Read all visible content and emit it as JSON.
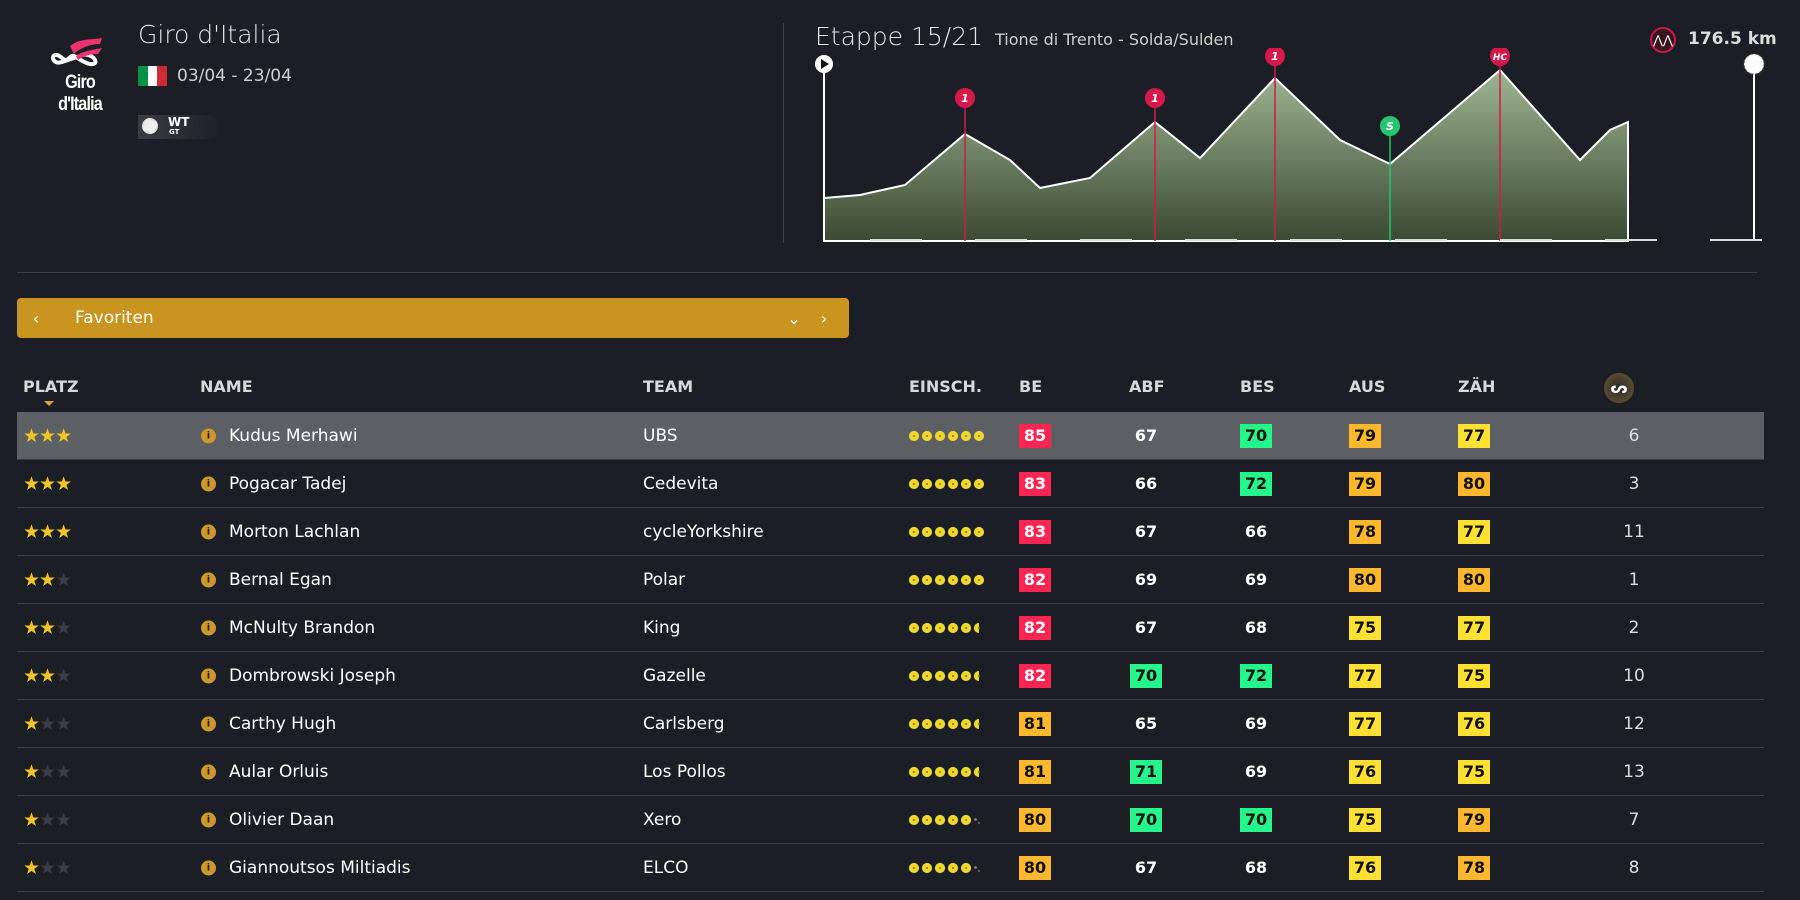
{
  "race": {
    "name": "Giro d'Italia",
    "logo_text": "Giro d'Italia",
    "dates": "03/04 - 23/04",
    "badge": "WT",
    "badge_sub": "GT",
    "flag_colors": [
      "#009246",
      "#ffffff",
      "#ce2b37"
    ]
  },
  "stage": {
    "title": "Etappe 15/21",
    "route": "Tione di Trento - Solda/Sulden",
    "distance": "176.5 km",
    "climbs": [
      {
        "label": "1",
        "type": "climb"
      },
      {
        "label": "1",
        "type": "climb"
      },
      {
        "label": "1",
        "type": "climb"
      },
      {
        "label": "S",
        "type": "sprint"
      },
      {
        "label": "HC",
        "type": "climb"
      }
    ]
  },
  "filter": {
    "label": "Favoriten"
  },
  "columns": {
    "platz": "PLATZ",
    "name": "NAME",
    "team": "TEAM",
    "form": "EINSCH.",
    "be": "BE",
    "abf": "ABF",
    "bes": "BES",
    "aus": "AUS",
    "zah": "ZÄH"
  },
  "colors": {
    "accent": "#c9941f",
    "red": "#ff2552",
    "orange": "#ffb82e",
    "yellow": "#ffe033",
    "green": "#26f58b"
  },
  "riders": [
    {
      "stars": 3,
      "name": "Kudus Merhawi",
      "team": "UBS",
      "form": 6,
      "stats": [
        [
          85,
          "red"
        ],
        [
          67,
          "none"
        ],
        [
          70,
          "grn"
        ],
        [
          79,
          "org"
        ],
        [
          77,
          "yel"
        ]
      ],
      "rank": "6",
      "selected": true
    },
    {
      "stars": 3,
      "name": "Pogacar Tadej",
      "team": "Cedevita",
      "form": 6,
      "stats": [
        [
          83,
          "red"
        ],
        [
          66,
          "none"
        ],
        [
          72,
          "grn"
        ],
        [
          79,
          "org"
        ],
        [
          80,
          "org"
        ]
      ],
      "rank": "3"
    },
    {
      "stars": 3,
      "name": "Morton Lachlan",
      "team": "cycleYorkshire",
      "form": 6,
      "stats": [
        [
          83,
          "red"
        ],
        [
          67,
          "none"
        ],
        [
          66,
          "none"
        ],
        [
          78,
          "org"
        ],
        [
          77,
          "yel"
        ]
      ],
      "rank": "11"
    },
    {
      "stars": 2,
      "name": "Bernal Egan",
      "team": "Polar",
      "form": 6,
      "stats": [
        [
          82,
          "red"
        ],
        [
          69,
          "none"
        ],
        [
          69,
          "none"
        ],
        [
          80,
          "org"
        ],
        [
          80,
          "org"
        ]
      ],
      "rank": "1"
    },
    {
      "stars": 2,
      "name": "McNulty Brandon",
      "team": "King",
      "form": 5.5,
      "stats": [
        [
          82,
          "red"
        ],
        [
          67,
          "none"
        ],
        [
          68,
          "none"
        ],
        [
          75,
          "yel"
        ],
        [
          77,
          "yel"
        ]
      ],
      "rank": "2"
    },
    {
      "stars": 2,
      "name": "Dombrowski Joseph",
      "team": "Gazelle",
      "form": 5.5,
      "stats": [
        [
          82,
          "red"
        ],
        [
          70,
          "grn"
        ],
        [
          72,
          "grn"
        ],
        [
          77,
          "yel"
        ],
        [
          75,
          "yel"
        ]
      ],
      "rank": "10"
    },
    {
      "stars": 1,
      "name": "Carthy Hugh",
      "team": "Carlsberg",
      "form": 5.5,
      "stats": [
        [
          81,
          "org"
        ],
        [
          65,
          "none"
        ],
        [
          69,
          "none"
        ],
        [
          77,
          "yel"
        ],
        [
          76,
          "yel"
        ]
      ],
      "rank": "12"
    },
    {
      "stars": 1,
      "name": "Aular Orluis",
      "team": "Los Pollos",
      "form": 5.5,
      "stats": [
        [
          81,
          "org"
        ],
        [
          71,
          "grn"
        ],
        [
          69,
          "none"
        ],
        [
          76,
          "yel"
        ],
        [
          75,
          "yel"
        ]
      ],
      "rank": "13"
    },
    {
      "stars": 1,
      "name": "Olivier Daan",
      "team": "Xero",
      "form": 5.1,
      "stats": [
        [
          80,
          "org"
        ],
        [
          70,
          "grn"
        ],
        [
          70,
          "grn"
        ],
        [
          75,
          "yel"
        ],
        [
          79,
          "org"
        ]
      ],
      "rank": "7"
    },
    {
      "stars": 1,
      "name": "Giannoutsos Miltiadis",
      "team": "ELCO",
      "form": 5.1,
      "stats": [
        [
          80,
          "org"
        ],
        [
          67,
          "none"
        ],
        [
          68,
          "none"
        ],
        [
          76,
          "yel"
        ],
        [
          78,
          "org"
        ]
      ],
      "rank": "8"
    }
  ]
}
